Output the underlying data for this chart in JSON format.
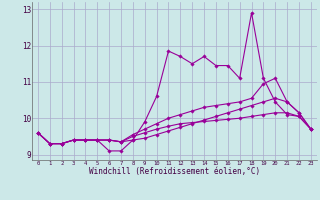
{
  "xlabel": "Windchill (Refroidissement éolien,°C)",
  "hours": [
    0,
    1,
    2,
    3,
    4,
    5,
    6,
    7,
    8,
    9,
    10,
    11,
    12,
    13,
    14,
    15,
    16,
    17,
    18,
    19,
    20,
    21,
    22,
    23
  ],
  "line1": [
    9.6,
    9.3,
    9.3,
    9.4,
    9.4,
    9.4,
    9.1,
    9.1,
    9.4,
    9.9,
    10.6,
    11.85,
    11.7,
    11.5,
    11.7,
    11.45,
    11.45,
    11.1,
    12.9,
    11.1,
    10.45,
    10.1,
    10.05,
    9.7
  ],
  "line2": [
    9.6,
    9.3,
    9.3,
    9.4,
    9.4,
    9.4,
    9.4,
    9.35,
    9.4,
    9.45,
    9.55,
    9.65,
    9.75,
    9.85,
    9.95,
    10.05,
    10.15,
    10.25,
    10.35,
    10.45,
    10.55,
    10.45,
    10.15,
    9.7
  ],
  "line3": [
    9.6,
    9.3,
    9.3,
    9.4,
    9.4,
    9.4,
    9.4,
    9.35,
    9.55,
    9.7,
    9.85,
    10.0,
    10.1,
    10.2,
    10.3,
    10.35,
    10.4,
    10.45,
    10.55,
    10.95,
    11.1,
    10.45,
    10.15,
    9.7
  ],
  "line4": [
    9.6,
    9.3,
    9.3,
    9.4,
    9.4,
    9.4,
    9.4,
    9.35,
    9.5,
    9.6,
    9.7,
    9.78,
    9.85,
    9.88,
    9.91,
    9.94,
    9.97,
    10.0,
    10.05,
    10.1,
    10.15,
    10.15,
    10.05,
    9.7
  ],
  "line_color": "#990099",
  "bg_color": "#cce8e8",
  "grid_color": "#aaaacc",
  "ylim": [
    8.85,
    13.2
  ],
  "yticks": [
    9,
    10,
    11,
    12,
    13
  ],
  "marker": "D",
  "markersize": 1.8,
  "linewidth": 0.8
}
